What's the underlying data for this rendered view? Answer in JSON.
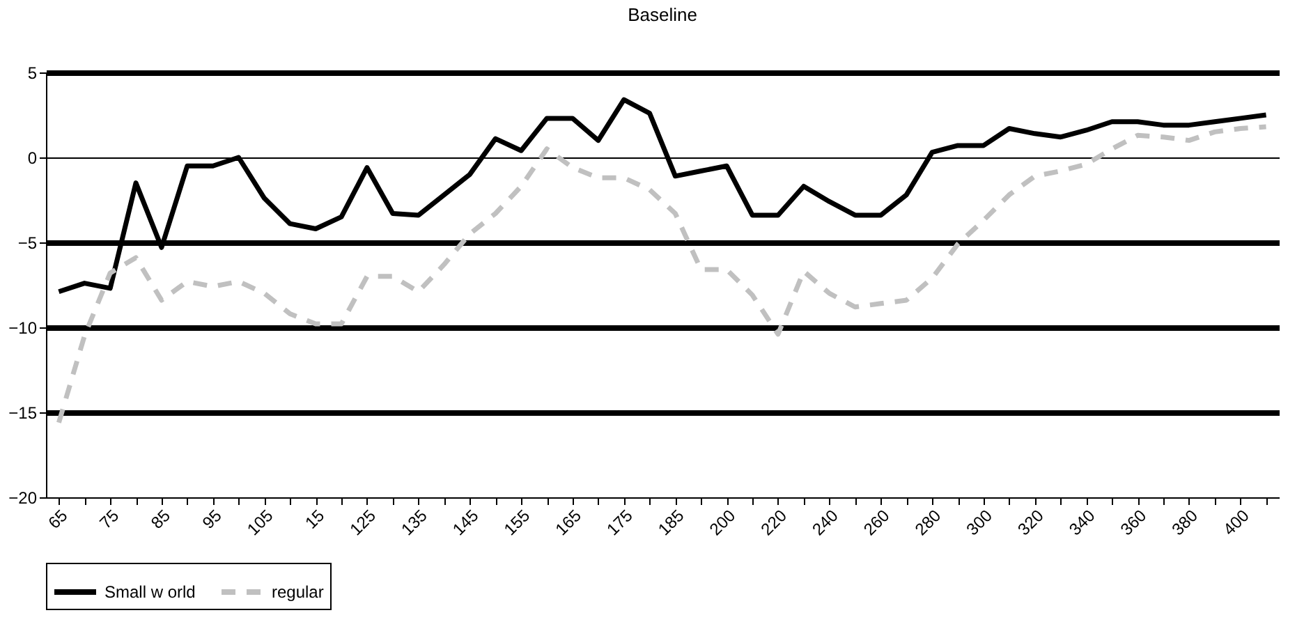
{
  "chart_data": {
    "type": "line",
    "title": "Baseline",
    "categories": [
      "65",
      null,
      "75",
      null,
      "85",
      null,
      "95",
      null,
      "105",
      null,
      "15",
      null,
      "125",
      null,
      "135",
      null,
      "145",
      null,
      "155",
      null,
      "165",
      null,
      "175",
      null,
      "185",
      null,
      "200",
      null,
      "220",
      null,
      "240",
      null,
      "260",
      null,
      "280",
      null,
      "300",
      null,
      "320",
      null,
      "340",
      null,
      "360",
      null,
      "380",
      null,
      "400",
      null
    ],
    "series": [
      {
        "name": "Small w orld",
        "color": "#000000",
        "line_style": "solid",
        "values": [
          -7.9,
          -7.4,
          -7.7,
          -1.5,
          -5.3,
          -0.5,
          -0.5,
          0,
          -2.4,
          -3.9,
          -4.2,
          -3.5,
          -0.6,
          -3.3,
          -3.4,
          -2.2,
          -1.0,
          1.1,
          0.4,
          2.3,
          2.3,
          1.0,
          3.4,
          2.6,
          -1.1,
          -0.8,
          -0.5,
          -3.4,
          -3.4,
          -1.7,
          -2.6,
          -3.4,
          -3.4,
          -2.2,
          0.3,
          0.7,
          0.7,
          1.7,
          1.4,
          1.2,
          1.6,
          2.1,
          2.1,
          1.9,
          1.9,
          2.1,
          2.3,
          2.5
        ]
      },
      {
        "name": "regular",
        "color": "#c0c0c0",
        "line_style": "dashed",
        "values": [
          -15.6,
          -10.5,
          -6.8,
          -5.9,
          -8.4,
          -7.3,
          -7.6,
          -7.3,
          -8.0,
          -9.2,
          -9.8,
          -9.8,
          -7.0,
          -7.0,
          -7.9,
          -6.3,
          -4.5,
          -3.3,
          -1.7,
          0.5,
          -0.6,
          -1.2,
          -1.2,
          -1.9,
          -3.3,
          -6.6,
          -6.6,
          -8.1,
          -10.4,
          -6.7,
          -8.0,
          -8.8,
          -8.6,
          -8.4,
          -7.1,
          -5.1,
          -3.7,
          -2.2,
          -1.1,
          -0.8,
          -0.4,
          0.5,
          1.3,
          1.2,
          1.0,
          1.5,
          1.7,
          1.8
        ]
      }
    ],
    "ylim": [
      -20,
      5
    ],
    "yticks": [
      -20,
      -15,
      -10,
      -5,
      0,
      5
    ],
    "grid": "y",
    "legend": "bottom"
  }
}
